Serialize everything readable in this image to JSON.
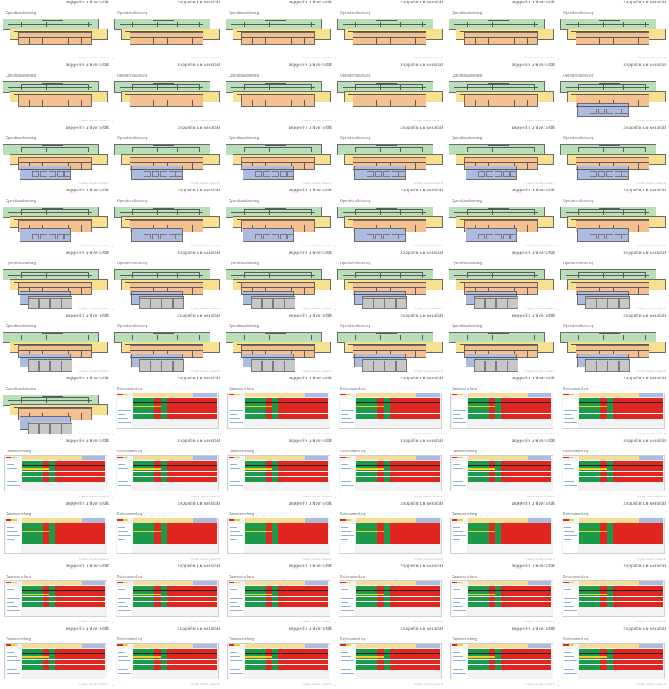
{
  "logo_text": "zeppelin universität",
  "footer_text": "© Zeppelin Universität • Lehrstuhl für",
  "slide_titles": {
    "operationalisierung": "Operationalisierung",
    "datensammlung": "Datensammlung"
  },
  "grid": {
    "columns": 6,
    "rows": 11
  },
  "slides": [
    {
      "type": "op",
      "stage": 1
    },
    {
      "type": "op",
      "stage": 2
    },
    {
      "type": "op",
      "stage": 1
    },
    {
      "type": "op",
      "stage": 1
    },
    {
      "type": "op",
      "stage": 1
    },
    {
      "type": "op",
      "stage": 2
    },
    {
      "type": "op",
      "stage": 1
    },
    {
      "type": "op",
      "stage": 2
    },
    {
      "type": "op",
      "stage": 1
    },
    {
      "type": "op",
      "stage": 1
    },
    {
      "type": "op",
      "stage": 2
    },
    {
      "type": "op",
      "stage": 3
    },
    {
      "type": "op",
      "stage": 3
    },
    {
      "type": "op",
      "stage": 3
    },
    {
      "type": "op",
      "stage": 3
    },
    {
      "type": "op",
      "stage": 3
    },
    {
      "type": "op",
      "stage": 3
    },
    {
      "type": "op",
      "stage": 3
    },
    {
      "type": "op",
      "stage": 3
    },
    {
      "type": "op",
      "stage": 3
    },
    {
      "type": "op",
      "stage": 3
    },
    {
      "type": "op",
      "stage": 3
    },
    {
      "type": "op",
      "stage": 3
    },
    {
      "type": "op",
      "stage": 3
    },
    {
      "type": "op",
      "stage": 4
    },
    {
      "type": "op",
      "stage": 4
    },
    {
      "type": "op",
      "stage": 4
    },
    {
      "type": "op",
      "stage": 4
    },
    {
      "type": "op",
      "stage": 4
    },
    {
      "type": "op",
      "stage": 4
    },
    {
      "type": "op",
      "stage": 4
    },
    {
      "type": "op",
      "stage": 4
    },
    {
      "type": "op",
      "stage": 4
    },
    {
      "type": "op",
      "stage": 4
    },
    {
      "type": "op",
      "stage": 4
    },
    {
      "type": "op",
      "stage": 4
    },
    {
      "type": "op",
      "stage": 4
    },
    {
      "type": "data"
    },
    {
      "type": "data"
    },
    {
      "type": "data"
    },
    {
      "type": "data"
    },
    {
      "type": "data"
    },
    {
      "type": "data"
    },
    {
      "type": "data"
    },
    {
      "type": "data"
    },
    {
      "type": "data"
    },
    {
      "type": "data"
    },
    {
      "type": "data"
    },
    {
      "type": "data"
    },
    {
      "type": "data"
    },
    {
      "type": "data"
    },
    {
      "type": "data"
    },
    {
      "type": "data"
    },
    {
      "type": "data"
    },
    {
      "type": "data"
    },
    {
      "type": "data"
    },
    {
      "type": "data"
    },
    {
      "type": "data"
    },
    {
      "type": "data"
    },
    {
      "type": "data"
    },
    {
      "type": "data"
    },
    {
      "type": "data"
    },
    {
      "type": "data"
    },
    {
      "type": "data"
    },
    {
      "type": "data"
    },
    {
      "type": "data"
    }
  ]
}
